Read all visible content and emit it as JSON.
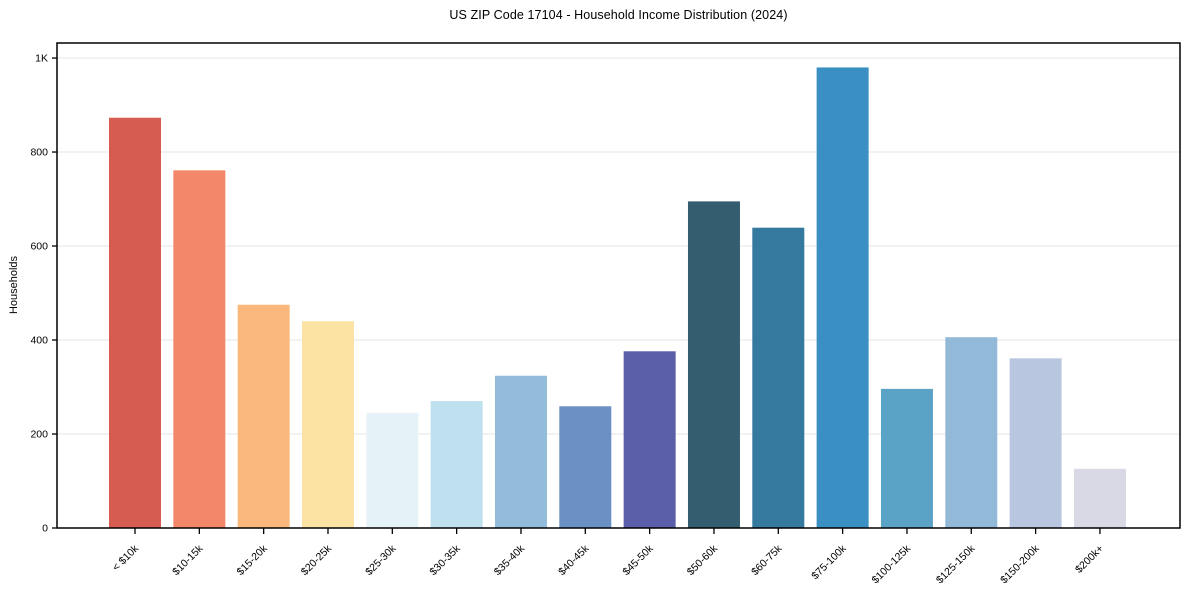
{
  "chart_data": {
    "type": "bar",
    "title": "US ZIP Code 17104 - Household Income Distribution (2024)",
    "xlabel": "",
    "ylabel": "Households",
    "categories": [
      "< $10k",
      "$10-15k",
      "$15-20k",
      "$20-25k",
      "$25-30k",
      "$30-35k",
      "$35-40k",
      "$40-45k",
      "$45-50k",
      "$50-60k",
      "$60-75k",
      "$75-100k",
      "$100-125k",
      "$125-150k",
      "$150-200k",
      "$200k+"
    ],
    "values": [
      873,
      761,
      475,
      440,
      245,
      270,
      324,
      259,
      376,
      695,
      639,
      980,
      296,
      406,
      361,
      126
    ],
    "bar_colors": [
      "#d65c51",
      "#f2876a",
      "#fab87d",
      "#fce3a4",
      "#e5f2f7",
      "#bfe0ee",
      "#92bcd9",
      "#6b90c4",
      "#5b5ea9",
      "#355d70",
      "#35799e",
      "#3a90c2",
      "#5ba3c6",
      "#93b9d9",
      "#b8c6df",
      "#d9d9e6"
    ],
    "ytick_values": [
      0,
      200,
      400,
      600,
      800,
      1000
    ],
    "ytick_labels": [
      "0",
      "200",
      "400",
      "600",
      "800",
      "1K"
    ],
    "ylim": [
      0,
      1032
    ],
    "grid": "horizontal",
    "legend": "none",
    "background_color": "#ffffff",
    "spine_color": "#000000",
    "grid_color": "#e9e9ec",
    "tick_color": "#000000"
  }
}
